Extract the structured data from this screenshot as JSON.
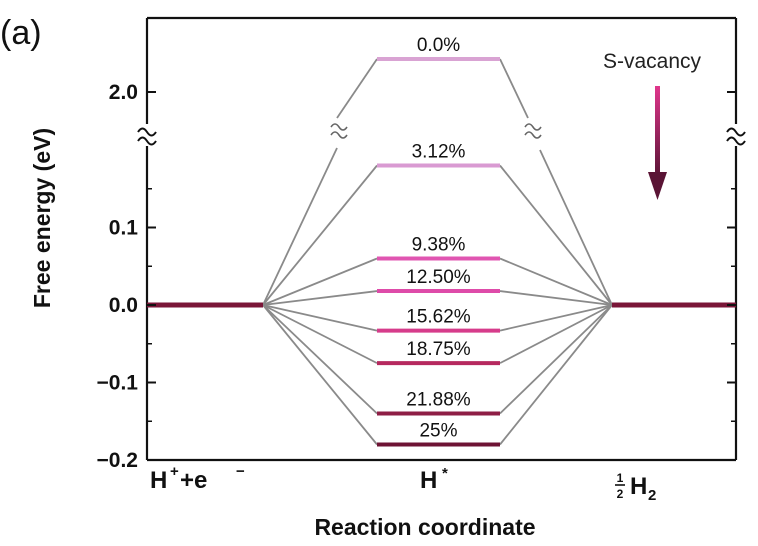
{
  "panel_label": "(a)",
  "chart_data": {
    "type": "line",
    "title": "",
    "xlabel": "Reaction coordinate",
    "ylabel": "Free energy (eV)",
    "ylim": [
      -0.2,
      0.2
    ],
    "y_ticks": [
      -0.2,
      -0.1,
      0.0,
      0.1
    ],
    "y_tick_labels": [
      "−0.2",
      "−0.1",
      "0.0",
      "0.1"
    ],
    "y_break_tick_value": 2.0,
    "y_break_tick_label": "2.0",
    "categories": [
      {
        "main": "H",
        "sup": "+",
        "rest": " +e",
        "sup2": "−"
      },
      {
        "main": "H",
        "sup": "*",
        "rest": "",
        "sup2": ""
      },
      {
        "main": "H",
        "sub": "2",
        "frac_num": "1",
        "frac_den": "2"
      }
    ],
    "initial_state_energy": 0.0,
    "final_state_energy": 0.0,
    "series": [
      {
        "name": "0.0%",
        "label": "0.0%",
        "value": 2.3,
        "above_break": true,
        "color": "#d9a3d3"
      },
      {
        "name": "3.12%",
        "label": "3.12%",
        "value": 0.18,
        "above_break": false,
        "color": "#d99ad2"
      },
      {
        "name": "9.38%",
        "label": "9.38%",
        "value": 0.06,
        "above_break": false,
        "color": "#e055b1"
      },
      {
        "name": "12.50%",
        "label": "12.50%",
        "value": 0.018,
        "above_break": false,
        "color": "#de4ba9"
      },
      {
        "name": "15.62%",
        "label": "15.62%",
        "value": -0.033,
        "above_break": false,
        "color": "#d63c8b"
      },
      {
        "name": "18.75%",
        "label": "18.75%",
        "value": -0.075,
        "above_break": false,
        "color": "#b6295f"
      },
      {
        "name": "21.88%",
        "label": "21.88%",
        "value": -0.14,
        "above_break": false,
        "color": "#8e1e45"
      },
      {
        "name": "25%",
        "label": "25%",
        "value": -0.18,
        "above_break": false,
        "color": "#6e1334"
      }
    ],
    "annotation": {
      "text": "S-vacancy",
      "arrow_top_color": "#e0368c",
      "arrow_bottom_color": "#5a1435"
    },
    "baseline_color": "#7a1638",
    "connector_color": "#8a8a8a",
    "break_symbol": "≈"
  }
}
